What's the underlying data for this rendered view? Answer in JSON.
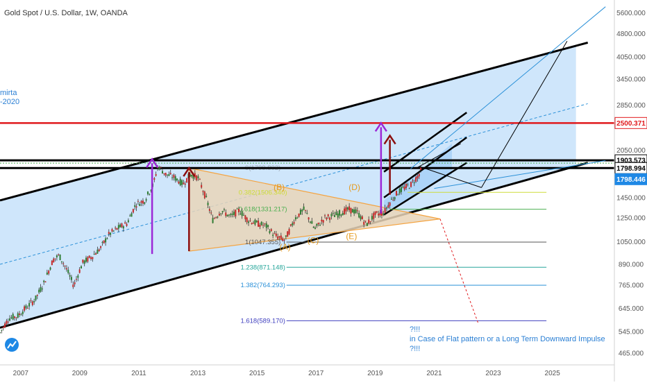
{
  "header": {
    "title": "Gold Spot / U.S. Dollar, 1W, OANDA",
    "left_fragment_1": "mirta",
    "left_fragment_2": "-2020"
  },
  "colors": {
    "channel_fill": "#cfe6fb",
    "channel_fill_inner": "#a9d1f7",
    "triangle_fill": "#e9d5b8",
    "triangle_stroke": "#f4a340",
    "red_level": "#e0191c",
    "purple_arrow": "#9c27d6",
    "darkred_arrow": "#8b0e0e",
    "axis_text": "#555555",
    "fib_label": "#6aa84f",
    "wave_label": "#e69a1c",
    "note_text": "#2a7fd4",
    "current_price_bg": "#1e88e5"
  },
  "chart_data": {
    "type": "line",
    "symbol": "Gold Spot / U.S. Dollar",
    "interval": "1W",
    "source": "OANDA",
    "y_scale": "log",
    "y_range": [
      440,
      5900
    ],
    "x_range": [
      2006.3,
      2027.1
    ],
    "y_axis_ticks": [
      465,
      545,
      645,
      765,
      890,
      1050,
      1250,
      1450,
      2050,
      2850,
      3450,
      4050,
      4800,
      5600
    ],
    "y_axis_tick_labels": [
      "465.000",
      "545.000",
      "645.000",
      "765.000",
      "890.000",
      "1050.000",
      "1250.000",
      "1450.000",
      "2050.000",
      "2850.000",
      "3450.000",
      "4050.000",
      "4800.000",
      "5600.000"
    ],
    "x_axis_ticks": [
      2007,
      2009,
      2011,
      2013,
      2015,
      2017,
      2019,
      2021,
      2023,
      2025
    ],
    "x_axis_tick_labels": [
      "2007",
      "2009",
      "2011",
      "2013",
      "2015",
      "2017",
      "2019",
      "2021",
      "2023",
      "2025"
    ],
    "price_series": {
      "x": [
        2006.3,
        2006.6,
        2006.9,
        2007.2,
        2007.5,
        2007.8,
        2008.1,
        2008.3,
        2008.5,
        2008.8,
        2009.1,
        2009.4,
        2009.7,
        2010.0,
        2010.3,
        2010.6,
        2010.9,
        2011.2,
        2011.5,
        2011.65,
        2011.9,
        2012.2,
        2012.5,
        2012.75,
        2013.0,
        2013.3,
        2013.5,
        2013.8,
        2014.1,
        2014.4,
        2014.7,
        2015.0,
        2015.3,
        2015.6,
        2015.95,
        2016.3,
        2016.6,
        2016.95,
        2017.3,
        2017.7,
        2018.1,
        2018.4,
        2018.7,
        2019.0,
        2019.3,
        2019.5,
        2019.75,
        2020.0,
        2020.2,
        2020.45,
        2020.6
      ],
      "y": [
        540,
        600,
        610,
        650,
        690,
        780,
        920,
        950,
        880,
        760,
        900,
        940,
        1000,
        1110,
        1160,
        1200,
        1380,
        1420,
        1600,
        1830,
        1720,
        1680,
        1600,
        1720,
        1680,
        1420,
        1230,
        1320,
        1260,
        1320,
        1230,
        1200,
        1180,
        1100,
        1060,
        1250,
        1330,
        1150,
        1250,
        1280,
        1330,
        1300,
        1190,
        1280,
        1300,
        1400,
        1500,
        1560,
        1590,
        1700,
        1800
      ]
    },
    "horizontal_levels": [
      {
        "price": 2500.371,
        "label": "2500.371"
      },
      {
        "price": 1903.573,
        "label": "1903.573"
      },
      {
        "price": 1798.994,
        "label": "1798.994"
      },
      {
        "price": 1798.446,
        "label": "1798.446"
      }
    ],
    "fibonacci_levels": [
      {
        "ratio": "0",
        "price": 1799.802,
        "label": "0(1799.802)"
      },
      {
        "ratio": "0.382",
        "price": 1506.34,
        "label": "0.382(1506.340)"
      },
      {
        "ratio": "0.618",
        "price": 1331.217,
        "label": "0.618(1331.217)"
      },
      {
        "ratio": "1",
        "price": 1047.355,
        "label": "1(1047.355)"
      },
      {
        "ratio": "1.238",
        "price": 871.148,
        "label": "1.238(871.148)"
      },
      {
        "ratio": "1.382",
        "price": 764.293,
        "label": "1.382(764.293)"
      },
      {
        "ratio": "1.618",
        "price": 589.17,
        "label": "1.618(589.170)"
      }
    ],
    "wave_labels": [
      "(A)",
      "(B)",
      "(C)",
      "(D)",
      "(E)"
    ],
    "annotation_lines": [
      "?!!!",
      "in Case of Flat pattern or a Long Term Downward Impulse",
      "?!!!"
    ]
  }
}
